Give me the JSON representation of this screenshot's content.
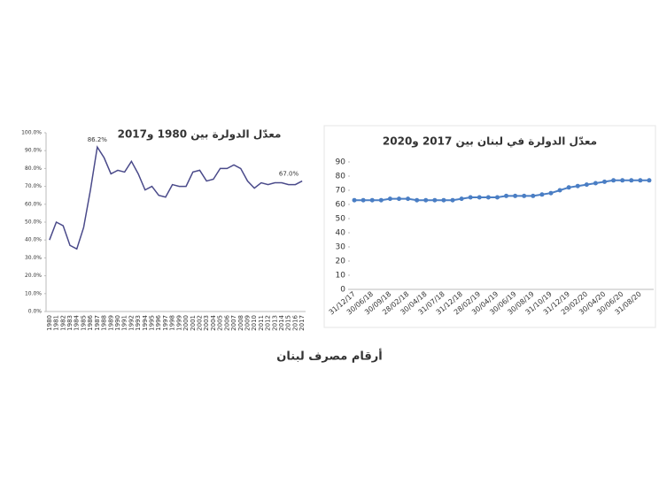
{
  "chart_data": [
    {
      "type": "line",
      "title": "معدّل الدولرة بين 1980 و2017",
      "categories": [
        "1980",
        "1981",
        "1982",
        "1983",
        "1984",
        "1985",
        "1986",
        "1987",
        "1988",
        "1989",
        "1990",
        "1991",
        "1992",
        "1993",
        "1994",
        "1995",
        "1996",
        "1997",
        "1998",
        "1999",
        "2000",
        "2001",
        "2002",
        "2003",
        "2004",
        "2005",
        "2006",
        "2007",
        "2008",
        "2009",
        "2010",
        "2011",
        "2012",
        "2013",
        "2014",
        "2015",
        "2016",
        "2017"
      ],
      "values": [
        40,
        50,
        48,
        37,
        35,
        47,
        68,
        92,
        86,
        77,
        79,
        78,
        84,
        77,
        68,
        70,
        65,
        64,
        71,
        70,
        70,
        78,
        79,
        73,
        74,
        80,
        80,
        82,
        80,
        73,
        69,
        72,
        71,
        72,
        72,
        71,
        71,
        73
      ],
      "color": "#4a4a8a",
      "ylim": [
        0,
        100
      ],
      "yticks": [
        {
          "value": 0,
          "label": "0.0%"
        },
        {
          "value": 10,
          "label": "10.0%"
        },
        {
          "value": 20,
          "label": "20.0%"
        },
        {
          "value": 30,
          "label": "30.0%"
        },
        {
          "value": 40,
          "label": "40.0%"
        },
        {
          "value": 50,
          "label": "50.0%"
        },
        {
          "value": 60,
          "label": "60.0%"
        },
        {
          "value": 70,
          "label": "70.0%"
        },
        {
          "value": 80,
          "label": "80.0%"
        },
        {
          "value": 90,
          "label": "90.0%"
        },
        {
          "value": 100,
          "label": "100.0%"
        }
      ],
      "annotations": [
        "86.2%",
        "67.0%"
      ],
      "grid": false,
      "markers": false
    },
    {
      "type": "line",
      "title": "معدّل الدولرة في لبنان بين 2017 و2020",
      "categories": [
        "31/12/17",
        null,
        "30/06/18",
        null,
        "30/09/18",
        null,
        "28/02/18",
        null,
        "30/04/18",
        null,
        "31/07/18",
        null,
        "31/12/18",
        null,
        "28/02/19",
        null,
        "30/04/19",
        null,
        "30/06/19",
        null,
        "30/08/19",
        null,
        "31/10/19",
        null,
        "31/12/19",
        null,
        "29/02/20",
        null,
        "30/04/20",
        null,
        "30/06/20",
        null,
        "31/08/20",
        null
      ],
      "values": [
        63,
        63,
        63,
        63,
        64,
        64,
        64,
        63,
        63,
        63,
        63,
        63,
        64,
        65,
        65,
        65,
        65,
        66,
        66,
        66,
        66,
        67,
        68,
        70,
        72,
        73,
        74,
        75,
        76,
        77,
        77,
        77,
        77,
        77
      ],
      "color": "#4a7ec4",
      "ylim": [
        0,
        90
      ],
      "yticks": [
        0,
        10,
        20,
        30,
        40,
        50,
        60,
        70,
        80,
        90
      ],
      "grid": false,
      "markers": true
    }
  ],
  "caption": "أرقام مصرف لبنان"
}
